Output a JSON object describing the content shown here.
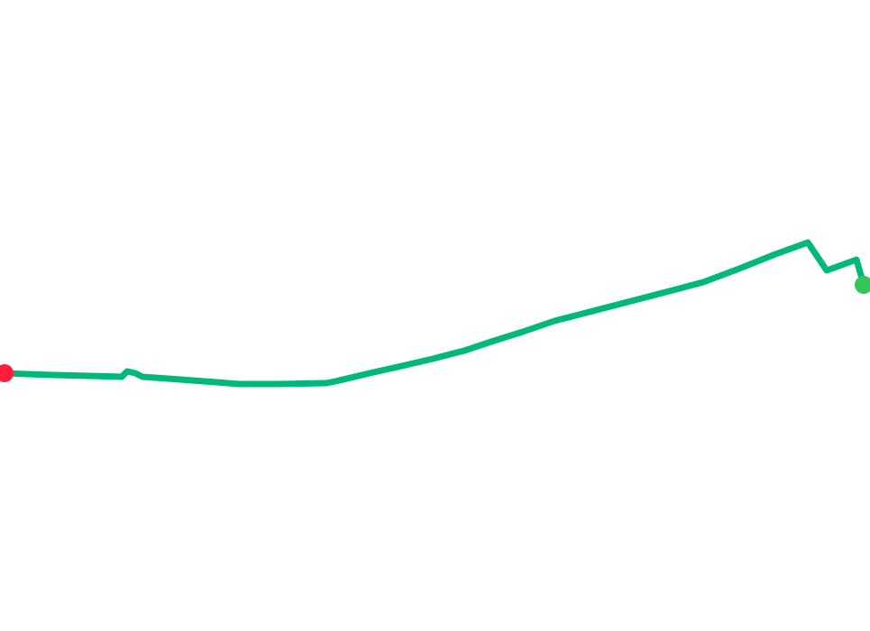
{
  "map": {
    "route": {
      "color": "#00b87a"
    },
    "start_marker": {
      "icon": "start-point-icon",
      "color": "#ff1f3d"
    },
    "end_marker": {
      "icon": "end-point-icon",
      "color": "#33c75a"
    }
  }
}
